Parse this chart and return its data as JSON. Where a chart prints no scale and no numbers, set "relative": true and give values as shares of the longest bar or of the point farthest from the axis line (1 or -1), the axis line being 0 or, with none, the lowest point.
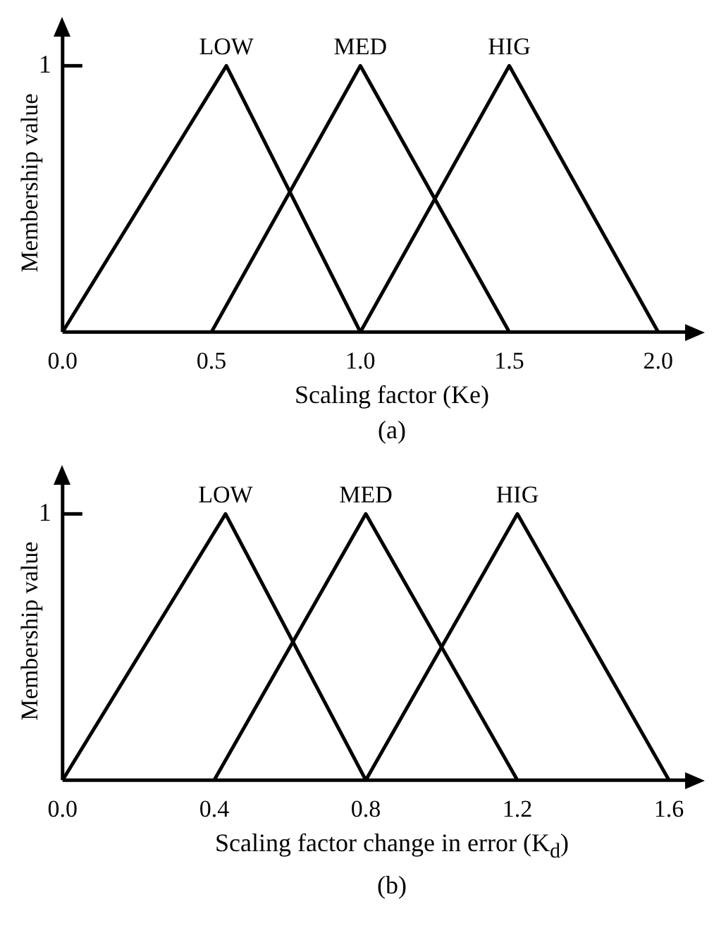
{
  "chart_data": [
    {
      "type": "line",
      "relative": true,
      "xlabel": "Scaling factor (Ke)",
      "ylabel": "Membership value",
      "xlim": [
        0,
        2.1
      ],
      "xticks": [
        {
          "value": 0,
          "label": "0.0"
        },
        {
          "value": 0.5,
          "label": "0.5"
        },
        {
          "value": 1,
          "label": "1.0"
        },
        {
          "value": 1.5,
          "label": "1.5"
        },
        {
          "value": 2,
          "label": "2.0"
        }
      ],
      "grid": false,
      "legend": false,
      "marker": "none",
      "line_style": "solid",
      "annotations": [
        "1",
        "(a)"
      ],
      "series": [
        {
          "name": "LOW",
          "color": "#000000",
          "x": [
            0,
            0.55,
            1
          ],
          "values": [
            0,
            1,
            0
          ]
        },
        {
          "name": "MED",
          "color": "#000000",
          "x": [
            0.5,
            1,
            1.5
          ],
          "values": [
            0,
            1,
            0
          ]
        },
        {
          "name": "HIG",
          "color": "#000000",
          "x": [
            1,
            1.5,
            2
          ],
          "values": [
            0,
            1,
            0
          ]
        }
      ]
    },
    {
      "type": "line",
      "relative": true,
      "xlabel": "Scaling factor change in error (K$_{d}$)",
      "ylabel": "Membership value",
      "xlim": [
        0,
        1.65
      ],
      "xticks": [
        {
          "value": 0,
          "label": "0.0"
        },
        {
          "value": 0.4,
          "label": "0.4"
        },
        {
          "value": 0.8,
          "label": "0.8"
        },
        {
          "value": 1.2,
          "label": "1.2"
        },
        {
          "value": 1.6,
          "label": "1.6"
        }
      ],
      "grid": false,
      "legend": false,
      "marker": "none",
      "line_style": "solid",
      "annotations": [
        "1",
        "(b)"
      ],
      "series": [
        {
          "name": "LOW",
          "color": "#000000",
          "x": [
            0,
            0.43,
            0.8
          ],
          "values": [
            0,
            1,
            0
          ]
        },
        {
          "name": "MED",
          "color": "#000000",
          "x": [
            0.4,
            0.8,
            1.2
          ],
          "values": [
            0,
            1,
            0
          ]
        },
        {
          "name": "HIG",
          "color": "#000000",
          "x": [
            0.8,
            1.2,
            1.6
          ],
          "values": [
            0,
            1,
            0
          ]
        }
      ]
    }
  ]
}
